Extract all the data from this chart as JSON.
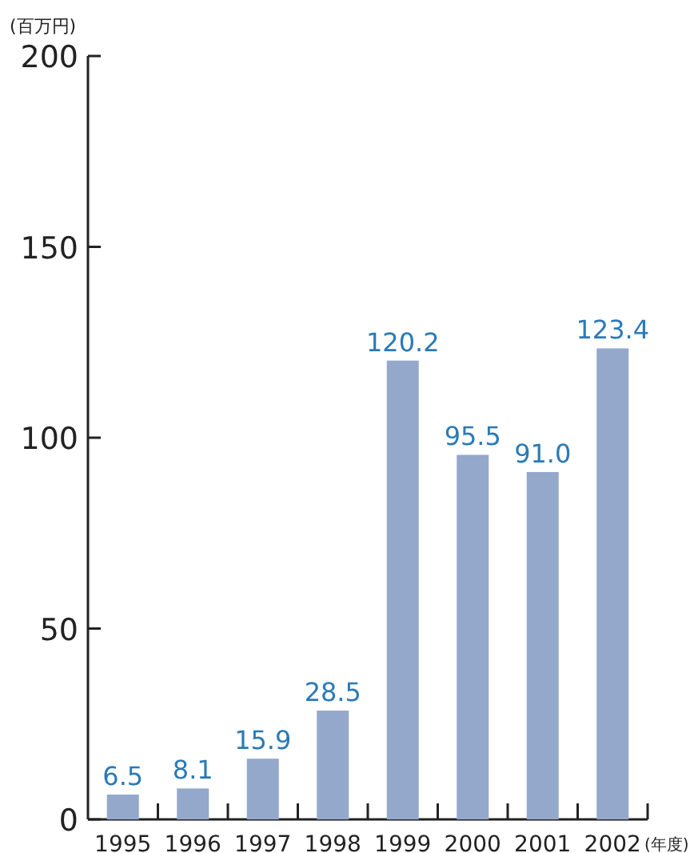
{
  "chart_data": {
    "type": "bar",
    "ylabel": "(百万円)",
    "xlabel": "(年度)",
    "categories": [
      "1995",
      "1996",
      "1997",
      "1998",
      "1999",
      "2000",
      "2001",
      "2002"
    ],
    "values": [
      6.5,
      8.1,
      15.9,
      28.5,
      120.2,
      95.5,
      91.0,
      123.4
    ],
    "value_labels": [
      "6.5",
      "8.1",
      "15.9",
      "28.5",
      "120.2",
      "95.5",
      "91.0",
      "123.4"
    ],
    "color": "#94a8cc",
    "ylim": [
      0,
      200
    ],
    "yticks": [
      0,
      50,
      100,
      150,
      200
    ],
    "grid": false
  }
}
